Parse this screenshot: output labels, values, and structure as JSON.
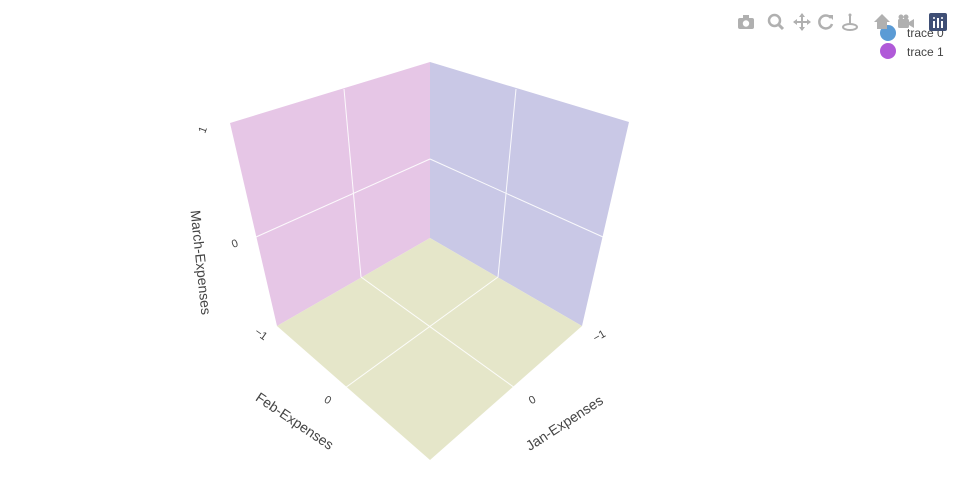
{
  "chart_data": {
    "type": "scatter3d",
    "axes": {
      "x": {
        "title": "Jan-Expenses",
        "ticks": [
          "−1",
          "0"
        ],
        "range": [
          -1,
          1
        ]
      },
      "y": {
        "title": "Feb-Expenses",
        "ticks": [
          "−1",
          "0"
        ],
        "range": [
          -1,
          1
        ]
      },
      "z": {
        "title": "March-Expenses",
        "ticks": [
          "−1",
          "0",
          "1"
        ],
        "range": [
          -1,
          1
        ]
      }
    },
    "grid": true,
    "legend_placement": "top-right",
    "series": [
      {
        "name": "trace 0",
        "color": "#5b9bd5",
        "x": [],
        "y": [],
        "z": []
      },
      {
        "name": "trace 1",
        "color": "#b05ad8",
        "x": [],
        "y": [],
        "z": []
      }
    ],
    "pane_colors": {
      "floor": "#e5e6c9",
      "left_wall": "#e6c6e6",
      "right_wall": "#c9c8e6"
    }
  },
  "modebar": {
    "buttons": [
      "camera-icon",
      "zoom-icon",
      "pan-icon",
      "orbit-icon",
      "turntable-icon",
      "home-icon",
      "video-camera-icon",
      "plotly-logo-icon"
    ]
  }
}
